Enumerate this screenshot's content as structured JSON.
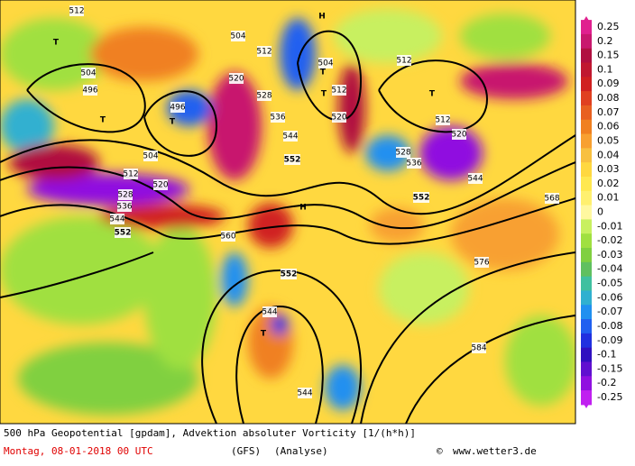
{
  "footer": {
    "title": "500 hPa Geopotential [gpdam], Advektion absoluter Vorticity [1/(h*h)]",
    "date": "Montag, 08-01-2018  00 UTC",
    "model": "(GFS)",
    "run": "(Analyse)",
    "copyright": "©",
    "source": "www.wetter3.de"
  },
  "legend": [
    {
      "label": "0.25",
      "color": "#e0208f"
    },
    {
      "label": "0.2",
      "color": "#c8186e"
    },
    {
      "label": "0.15",
      "color": "#b01040"
    },
    {
      "label": "0.1",
      "color": "#c01830"
    },
    {
      "label": "0.09",
      "color": "#d02020"
    },
    {
      "label": "0.08",
      "color": "#e04020"
    },
    {
      "label": "0.07",
      "color": "#e86020"
    },
    {
      "label": "0.06",
      "color": "#f08020"
    },
    {
      "label": "0.05",
      "color": "#f8a030"
    },
    {
      "label": "0.04",
      "color": "#f8c040"
    },
    {
      "label": "0.03",
      "color": "#ffd840"
    },
    {
      "label": "0.02",
      "color": "#ffe850"
    },
    {
      "label": "0.01",
      "color": "#fff070"
    },
    {
      "label": "0",
      "color": "#fff8a0"
    },
    {
      "label": "-0.01",
      "color": "#c8f060"
    },
    {
      "label": "-0.02",
      "color": "#a0e040"
    },
    {
      "label": "-0.03",
      "color": "#80d040"
    },
    {
      "label": "-0.04",
      "color": "#60c060"
    },
    {
      "label": "-0.05",
      "color": "#40c0a0"
    },
    {
      "label": "-0.06",
      "color": "#30b0d0"
    },
    {
      "label": "-0.07",
      "color": "#2090f0"
    },
    {
      "label": "-0.08",
      "color": "#2060f0"
    },
    {
      "label": "-0.09",
      "color": "#2030e0"
    },
    {
      "label": "-0.1",
      "color": "#3010c0"
    },
    {
      "label": "-0.15",
      "color": "#6010d0"
    },
    {
      "label": "-0.2",
      "color": "#9010e0"
    },
    {
      "label": "-0.25",
      "color": "#c020f0"
    }
  ],
  "map_labels": [
    "512",
    "504",
    "512",
    "H",
    "T",
    "504",
    "496",
    "T",
    "496",
    "T",
    "520",
    "528",
    "536",
    "544",
    "552",
    "504",
    "512",
    "520",
    "528",
    "536",
    "544",
    "552",
    "504",
    "T",
    "512",
    "520",
    "T",
    "512",
    "T",
    "512",
    "520",
    "528",
    "536",
    "544",
    "552",
    "H",
    "560",
    "568",
    "576",
    "552",
    "544",
    "T",
    "544",
    "584"
  ]
}
